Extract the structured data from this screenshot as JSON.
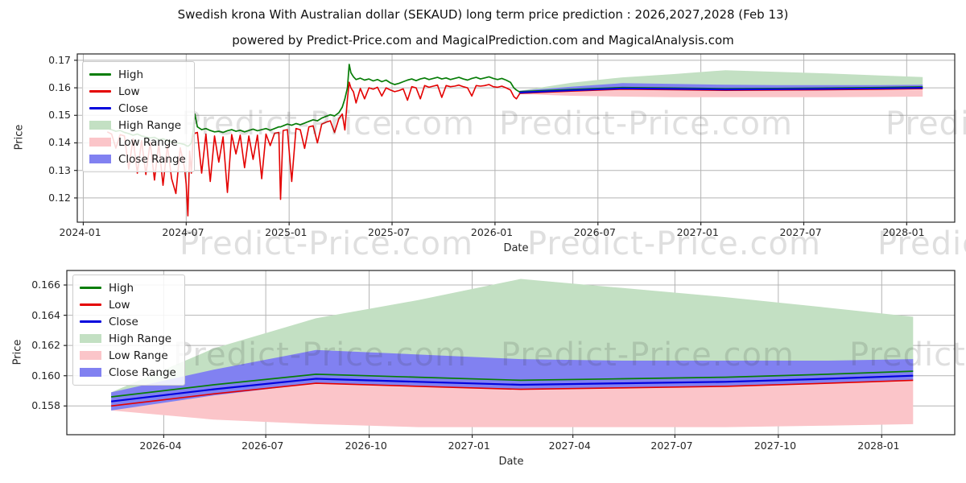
{
  "page": {
    "title": "Swedish krona With Australian dollar (SEKAUD) long term price prediction : 2026,2027,2028 (Feb 13)",
    "subtitle": "powered by Predict-Price.com and MagicalPrediction.com and MagicalAnalysis.com"
  },
  "watermark": {
    "text": "Predict-Price.com"
  },
  "chart_data": [
    {
      "type": "line",
      "name": "sekaud-history-and-forecast",
      "ylabel": "Price",
      "xlabel": "Date",
      "grid": true,
      "legend_position": "upper-left",
      "legend": [
        "High",
        "Low",
        "Close",
        "High Range",
        "Low Range",
        "Close Range"
      ],
      "colors": {
        "high": "#077d07",
        "low": "#e40000",
        "close": "#0202dd",
        "high_range": "#c3e0c3",
        "low_range": "#fbc5c9",
        "close_range": "#8181f1",
        "grid": "#b4b4b4",
        "spine": "#262626"
      },
      "ylim": [
        0.1112,
        0.1723
      ],
      "xlim": [
        -0.35,
        50.8
      ],
      "x_unit": "months since 2024-01-01",
      "yticks": [
        {
          "v": 0.17,
          "label": "0.17"
        },
        {
          "v": 0.16,
          "label": "0.16"
        },
        {
          "v": 0.15,
          "label": "0.15"
        },
        {
          "v": 0.14,
          "label": "0.14"
        },
        {
          "v": 0.13,
          "label": "0.13"
        },
        {
          "v": 0.12,
          "label": "0.12"
        }
      ],
      "xticks": [
        {
          "t": 0,
          "label": "2024-01"
        },
        {
          "t": 6,
          "label": "2024-07"
        },
        {
          "t": 12,
          "label": "2025-01"
        },
        {
          "t": 18,
          "label": "2025-07"
        },
        {
          "t": 24,
          "label": "2026-01"
        },
        {
          "t": 30,
          "label": "2026-07"
        },
        {
          "t": 36,
          "label": "2027-01"
        },
        {
          "t": 42,
          "label": "2027-07"
        },
        {
          "t": 48,
          "label": "2028-01"
        }
      ],
      "history": {
        "t": [
          1.4,
          1.65,
          1.9,
          2.15,
          2.4,
          2.65,
          2.9,
          3.15,
          3.4,
          3.65,
          3.9,
          4.15,
          4.4,
          4.65,
          4.9,
          5.15,
          5.4,
          5.65,
          5.9,
          6.0,
          6.1,
          6.2,
          6.3,
          6.4,
          6.5,
          6.65,
          6.9,
          7.15,
          7.4,
          7.65,
          7.9,
          8.15,
          8.4,
          8.65,
          8.9,
          9.15,
          9.4,
          9.65,
          9.9,
          10.15,
          10.4,
          10.65,
          10.9,
          11.15,
          11.4,
          11.5,
          11.65,
          11.9,
          12.15,
          12.4,
          12.65,
          12.9,
          13.15,
          13.4,
          13.65,
          13.9,
          14.15,
          14.4,
          14.65,
          14.9,
          15.1,
          15.25,
          15.4,
          15.5,
          15.6,
          15.75,
          15.9,
          16.15,
          16.4,
          16.65,
          16.9,
          17.15,
          17.4,
          17.65,
          17.9,
          18.15,
          18.4,
          18.65,
          18.9,
          19.15,
          19.4,
          19.65,
          19.9,
          20.15,
          20.4,
          20.65,
          20.9,
          21.15,
          21.4,
          21.65,
          21.9,
          22.15,
          22.4,
          22.65,
          22.9,
          23.15,
          23.4,
          23.65,
          23.9,
          24.15,
          24.4,
          24.65,
          24.9,
          25.1,
          25.25,
          25.43
        ],
        "high": [
          0.1452,
          0.1448,
          0.1442,
          0.1445,
          0.1438,
          0.1434,
          0.1428,
          0.1432,
          0.1425,
          0.1422,
          0.1418,
          0.142,
          0.1412,
          0.1415,
          0.1408,
          0.1404,
          0.14,
          0.1398,
          0.1394,
          0.139,
          0.1388,
          0.1392,
          0.14,
          0.144,
          0.1505,
          0.1458,
          0.1448,
          0.1452,
          0.1445,
          0.144,
          0.1442,
          0.1438,
          0.1444,
          0.1448,
          0.1442,
          0.1446,
          0.144,
          0.1445,
          0.145,
          0.1444,
          0.1448,
          0.1452,
          0.1446,
          0.1452,
          0.1458,
          0.1458,
          0.1462,
          0.1468,
          0.1464,
          0.147,
          0.1466,
          0.1472,
          0.1478,
          0.1484,
          0.148,
          0.149,
          0.1496,
          0.1502,
          0.1498,
          0.151,
          0.153,
          0.156,
          0.16,
          0.1685,
          0.1655,
          0.164,
          0.163,
          0.1635,
          0.1628,
          0.1632,
          0.1625,
          0.163,
          0.1622,
          0.1628,
          0.1618,
          0.1612,
          0.1616,
          0.1622,
          0.1628,
          0.1632,
          0.1626,
          0.1632,
          0.1636,
          0.163,
          0.1634,
          0.1638,
          0.1632,
          0.1636,
          0.163,
          0.1634,
          0.1638,
          0.1632,
          0.1628,
          0.1634,
          0.1638,
          0.1632,
          0.1636,
          0.164,
          0.1634,
          0.163,
          0.1634,
          0.1628,
          0.162,
          0.16,
          0.1592,
          0.1585
        ],
        "low": [
          0.144,
          0.1432,
          0.1381,
          0.143,
          0.1425,
          0.1305,
          0.1415,
          0.129,
          0.1408,
          0.1285,
          0.1402,
          0.1265,
          0.1398,
          0.1246,
          0.139,
          0.127,
          0.1216,
          0.1382,
          0.131,
          0.125,
          0.1135,
          0.137,
          0.129,
          0.142,
          0.1435,
          0.1438,
          0.129,
          0.1432,
          0.126,
          0.1425,
          0.133,
          0.1422,
          0.122,
          0.143,
          0.136,
          0.1428,
          0.131,
          0.1425,
          0.134,
          0.1428,
          0.127,
          0.1432,
          0.139,
          0.1435,
          0.1438,
          0.1195,
          0.1445,
          0.1448,
          0.126,
          0.1452,
          0.1448,
          0.138,
          0.1458,
          0.1462,
          0.14,
          0.1468,
          0.1475,
          0.148,
          0.1438,
          0.1488,
          0.1505,
          0.1447,
          0.156,
          0.162,
          0.16,
          0.1585,
          0.1545,
          0.1598,
          0.156,
          0.16,
          0.1595,
          0.1602,
          0.157,
          0.16,
          0.1592,
          0.1586,
          0.159,
          0.1596,
          0.1555,
          0.1604,
          0.16,
          0.156,
          0.1608,
          0.1602,
          0.1606,
          0.161,
          0.1565,
          0.1608,
          0.1604,
          0.1606,
          0.161,
          0.1604,
          0.16,
          0.157,
          0.1608,
          0.1606,
          0.1608,
          0.1612,
          0.1604,
          0.1602,
          0.1606,
          0.16,
          0.1592,
          0.1568,
          0.156,
          0.1578
        ]
      },
      "forecast": {
        "t": [
          25.43,
          28.43,
          31.43,
          34.43,
          37.43,
          40.43,
          43.43,
          46.43,
          48.93
        ],
        "close": [
          0.1583,
          0.1591,
          0.1598,
          0.1596,
          0.1594,
          0.1595,
          0.1596,
          0.1598,
          0.16
        ],
        "high_line": [
          0.1586,
          0.1594,
          0.1601,
          0.1599,
          0.1597,
          0.1598,
          0.1599,
          0.1601,
          0.1603
        ],
        "low_line": [
          0.158,
          0.1588,
          0.1595,
          0.1593,
          0.1591,
          0.1592,
          0.1593,
          0.1595,
          0.1597
        ],
        "high_top": [
          0.1589,
          0.1618,
          0.1638,
          0.165,
          0.1664,
          0.1658,
          0.1652,
          0.1645,
          0.1639
        ],
        "low_bottom": [
          0.1577,
          0.1571,
          0.1568,
          0.1566,
          0.1566,
          0.1566,
          0.1566,
          0.1567,
          0.1568
        ],
        "close_top": [
          0.1589,
          0.1604,
          0.1617,
          0.1614,
          0.1611,
          0.161,
          0.161,
          0.161,
          0.1611
        ],
        "close_bottom": [
          0.1577,
          0.1587,
          0.1595,
          0.1593,
          0.1591,
          0.1592,
          0.1593,
          0.1595,
          0.1597
        ]
      }
    },
    {
      "type": "line",
      "name": "sekaud-forecast-detail",
      "ylabel": "Price",
      "xlabel": "Date",
      "grid": true,
      "legend_position": "upper-left",
      "legend": [
        "High",
        "Low",
        "Close",
        "High Range",
        "Low Range",
        "Close Range"
      ],
      "colors": {
        "high": "#077d07",
        "low": "#e40000",
        "close": "#0202dd",
        "high_range": "#c3e0c3",
        "low_range": "#fbc5c9",
        "close_range": "#8181f1",
        "grid": "#b4b4b4",
        "spine": "#262626"
      },
      "ylim": [
        0.1561,
        0.16696
      ],
      "xlim": [
        -1.3,
        24.72
      ],
      "x_unit": "months since 2026-02-13",
      "yticks": [
        {
          "v": 0.166,
          "label": "0.166"
        },
        {
          "v": 0.164,
          "label": "0.164"
        },
        {
          "v": 0.162,
          "label": "0.162"
        },
        {
          "v": 0.16,
          "label": "0.160"
        },
        {
          "v": 0.158,
          "label": "0.158"
        }
      ],
      "xticks": [
        {
          "t": 1.54,
          "label": "2026-04"
        },
        {
          "t": 4.53,
          "label": "2026-07"
        },
        {
          "t": 7.56,
          "label": "2026-10"
        },
        {
          "t": 10.58,
          "label": "2027-01"
        },
        {
          "t": 13.53,
          "label": "2027-04"
        },
        {
          "t": 16.52,
          "label": "2027-07"
        },
        {
          "t": 19.55,
          "label": "2027-10"
        },
        {
          "t": 22.58,
          "label": "2028-01"
        }
      ],
      "forecast": {
        "t": [
          0,
          3,
          6,
          9,
          12,
          15,
          18,
          21,
          23.5
        ],
        "close": [
          0.1583,
          0.1591,
          0.1598,
          0.1596,
          0.1594,
          0.1595,
          0.1596,
          0.1598,
          0.16
        ],
        "high_line": [
          0.1586,
          0.1594,
          0.1601,
          0.1599,
          0.1597,
          0.1598,
          0.1599,
          0.1601,
          0.1603
        ],
        "low_line": [
          0.158,
          0.1588,
          0.1595,
          0.1593,
          0.1591,
          0.1592,
          0.1593,
          0.1595,
          0.1597
        ],
        "high_top": [
          0.1589,
          0.1618,
          0.1638,
          0.165,
          0.1664,
          0.1658,
          0.1652,
          0.1645,
          0.1639
        ],
        "low_bottom": [
          0.1577,
          0.1571,
          0.1568,
          0.1566,
          0.1566,
          0.1566,
          0.1566,
          0.1567,
          0.1568
        ],
        "close_top": [
          0.1589,
          0.1604,
          0.1617,
          0.1614,
          0.1611,
          0.161,
          0.161,
          0.161,
          0.1611
        ],
        "close_bottom": [
          0.1577,
          0.1587,
          0.1595,
          0.1593,
          0.1591,
          0.1592,
          0.1593,
          0.1595,
          0.1597
        ]
      }
    }
  ]
}
